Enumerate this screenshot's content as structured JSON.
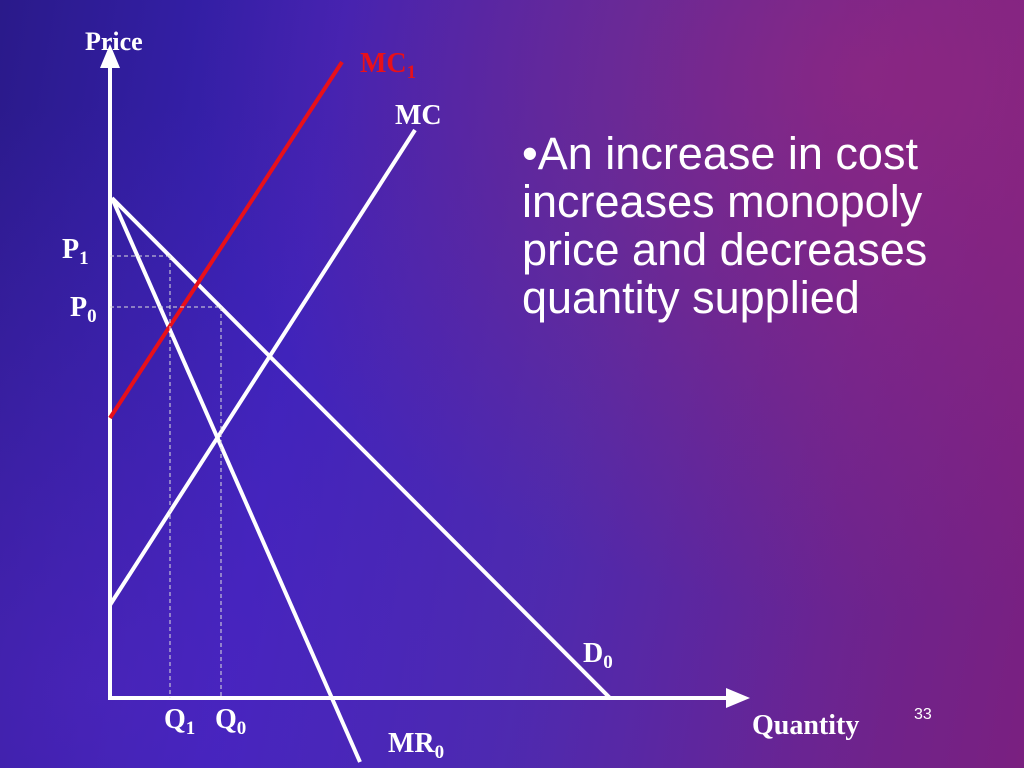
{
  "diagram": {
    "axis_labels": {
      "y": "Price",
      "x": "Quantity"
    },
    "curves": {
      "mc1": {
        "main": "MC",
        "sub": "1"
      },
      "mc": {
        "main": "MC"
      },
      "demand": {
        "main": "D",
        "sub": "0"
      },
      "mr": {
        "main": "MR",
        "sub": "0"
      }
    },
    "prices": [
      {
        "main": "P",
        "sub": "1"
      },
      {
        "main": "P",
        "sub": "0"
      }
    ],
    "quantities": [
      {
        "main": "Q",
        "sub": "1"
      },
      {
        "main": "Q",
        "sub": "0"
      }
    ]
  },
  "bullet": {
    "lines": [
      "•An increase in cost",
      "increases monopoly",
      "price and decreases",
      "quantity supplied"
    ]
  },
  "page_number": "33"
}
